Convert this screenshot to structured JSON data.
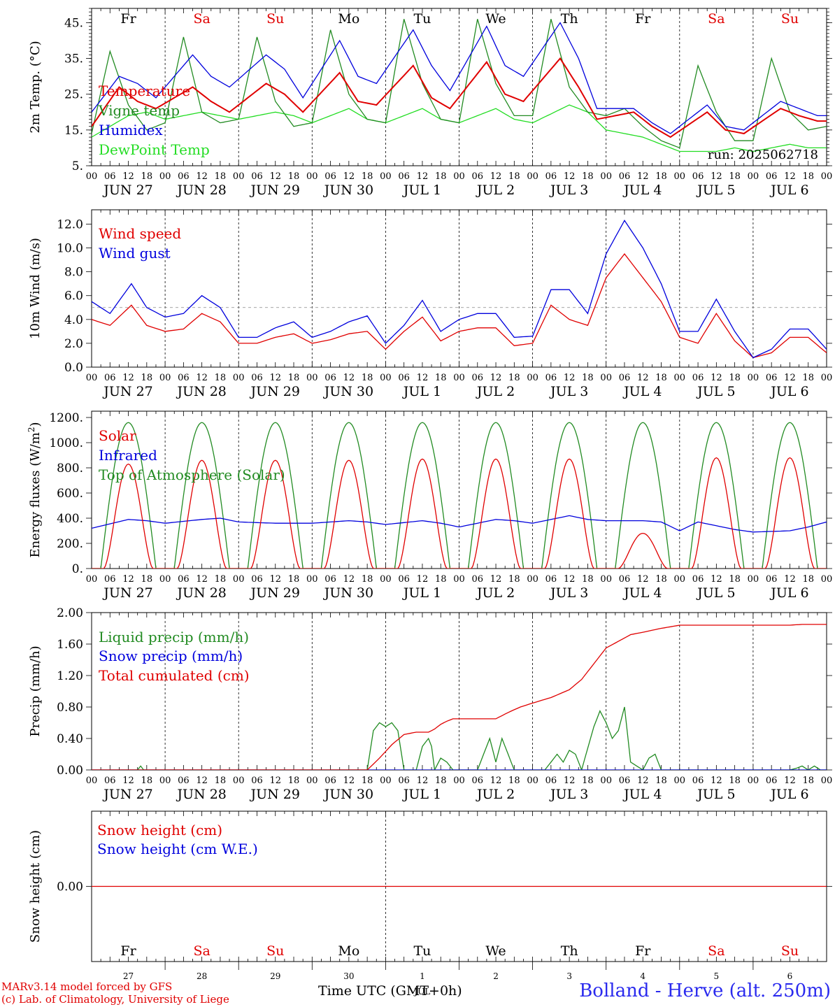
{
  "run_label": "run: 2025062718",
  "footer": {
    "model": "MARv3.14 model forced by GFS",
    "lab": "(c) Lab. of Climatology, University of Liege",
    "x_title": "Time UTC (GMT+0h)",
    "station": "Bolland - Herve (alt. 250m)",
    "month_under": "JUL"
  },
  "weekdays": [
    {
      "label": "Fr",
      "color": "#000000"
    },
    {
      "label": "Sa",
      "color": "#e00000"
    },
    {
      "label": "Su",
      "color": "#e00000"
    },
    {
      "label": "Mo",
      "color": "#000000"
    },
    {
      "label": "Tu",
      "color": "#000000"
    },
    {
      "label": "We",
      "color": "#000000"
    },
    {
      "label": "Th",
      "color": "#000000"
    },
    {
      "label": "Fr",
      "color": "#000000"
    },
    {
      "label": "Sa",
      "color": "#e00000"
    },
    {
      "label": "Su",
      "color": "#e00000"
    }
  ],
  "dates": [
    "JUN 27",
    "JUN 28",
    "JUN 29",
    "JUN 30",
    "JUL  1",
    "JUL  2",
    "JUL  3",
    "JUL  4",
    "JUL  5",
    "JUL  6"
  ],
  "day_numbers": [
    "27",
    "28",
    "29",
    "30",
    "1",
    "2",
    "3",
    "4",
    "5",
    "6"
  ],
  "hour_labels": [
    "00",
    "06",
    "12",
    "18"
  ],
  "last_hour_label": "00",
  "chart_data": [
    {
      "type": "line",
      "ylabel": "2m Temp. (°C)",
      "ylim": [
        5,
        49
      ],
      "yticks": [
        5,
        15,
        25,
        35,
        45
      ],
      "ytick_labels": [
        "5.",
        "15.",
        "25.",
        "35.",
        "45."
      ],
      "x_unit": "hours since JUN 27 00 UTC",
      "series": [
        {
          "name": "Temperature",
          "color": "#e00000",
          "x": [
            0,
            9,
            15,
            21,
            33,
            39,
            45,
            57,
            63,
            69,
            81,
            87,
            93,
            105,
            111,
            117,
            129,
            135,
            141,
            153,
            159,
            165,
            177,
            183,
            189,
            201,
            207,
            213,
            225,
            231,
            237
          ],
          "values": [
            16,
            27,
            23,
            21,
            27,
            23,
            20,
            28,
            25,
            20,
            31,
            23,
            22,
            33,
            24,
            21,
            34,
            25,
            23,
            35,
            27,
            18,
            20,
            16,
            13,
            20,
            15,
            14,
            21,
            19,
            17.5
          ]
        },
        {
          "name": "Vigne temp",
          "color": "#228b22",
          "x": [
            0,
            6,
            12,
            18,
            24,
            30,
            36,
            42,
            48,
            54,
            60,
            66,
            72,
            78,
            84,
            90,
            96,
            102,
            108,
            114,
            120,
            126,
            132,
            138,
            144,
            150,
            156,
            162,
            168,
            174,
            180,
            186,
            192,
            198,
            204,
            210,
            216,
            222,
            228,
            234,
            240
          ],
          "values": [
            14,
            37,
            22,
            15,
            17,
            41,
            20,
            17,
            18,
            41,
            23,
            16,
            17,
            43,
            25,
            18,
            17,
            46,
            28,
            18,
            17,
            46,
            28,
            19,
            19,
            46,
            27,
            20,
            19,
            21,
            16,
            12,
            10,
            33,
            20,
            12,
            12,
            35,
            20,
            15,
            16
          ]
        },
        {
          "name": "Humidex",
          "color": "#0000dd",
          "x": [
            0,
            9,
            15,
            21,
            33,
            39,
            45,
            57,
            63,
            69,
            81,
            87,
            93,
            105,
            111,
            117,
            129,
            135,
            141,
            153,
            159,
            165,
            177,
            183,
            189,
            201,
            207,
            213,
            225,
            231,
            237
          ],
          "values": [
            20,
            30,
            28,
            24,
            36,
            30,
            27,
            36,
            32,
            24,
            40,
            30,
            28,
            43,
            33,
            26,
            44,
            33,
            30,
            45,
            35,
            21,
            21,
            17,
            14,
            22,
            16,
            15,
            23,
            21,
            19
          ]
        },
        {
          "name": "DewPoint Temp",
          "color": "#22dd22",
          "x": [
            0,
            12,
            18,
            24,
            36,
            42,
            48,
            60,
            66,
            72,
            84,
            90,
            96,
            108,
            114,
            120,
            132,
            138,
            144,
            156,
            162,
            168,
            180,
            186,
            192,
            204,
            210,
            216,
            228,
            234,
            240
          ],
          "values": [
            13,
            19,
            20,
            18,
            20,
            19,
            18,
            20,
            19,
            17,
            21,
            18,
            17,
            21,
            18,
            17,
            21,
            18,
            17,
            22,
            20,
            15,
            13,
            11,
            9,
            9,
            10,
            9,
            11,
            10,
            10
          ]
        }
      ]
    },
    {
      "type": "line",
      "ylabel": "10m Wind (m/s)",
      "ylim": [
        0,
        13.2
      ],
      "yticks": [
        0,
        2,
        4,
        6,
        8,
        10,
        12
      ],
      "ytick_labels": [
        "0.0",
        "2.0",
        "4.0",
        "6.0",
        "8.0",
        "10.0",
        "12.0"
      ],
      "ref_line": 5,
      "x_unit": "hours since JUN 27 00 UTC",
      "series": [
        {
          "name": "Wind speed",
          "color": "#e00000",
          "x": [
            0,
            6,
            13,
            18,
            24,
            30,
            36,
            42,
            48,
            54,
            60,
            66,
            72,
            78,
            84,
            90,
            96,
            102,
            108,
            114,
            120,
            126,
            132,
            138,
            144,
            150,
            156,
            162,
            168,
            174,
            180,
            186,
            192,
            198,
            204,
            210,
            216,
            222,
            228,
            234,
            240
          ],
          "values": [
            4,
            3.5,
            5.2,
            3.5,
            3,
            3.2,
            4.5,
            3.8,
            2,
            2,
            2.5,
            2.8,
            2,
            2.3,
            2.8,
            3,
            1.5,
            3,
            4.2,
            2.2,
            3,
            3.3,
            3.3,
            1.8,
            2,
            5.2,
            4,
            3.5,
            7.5,
            9.5,
            7.5,
            5.5,
            2.5,
            2,
            4.5,
            2.2,
            0.8,
            1.2,
            2.5,
            2.5,
            1.2
          ]
        },
        {
          "name": "Wind gust",
          "color": "#0000dd",
          "x": [
            0,
            6,
            13,
            18,
            24,
            30,
            36,
            42,
            48,
            54,
            60,
            66,
            72,
            78,
            84,
            90,
            96,
            102,
            108,
            114,
            120,
            126,
            132,
            138,
            144,
            150,
            156,
            162,
            168,
            174,
            180,
            186,
            192,
            198,
            204,
            210,
            216,
            222,
            228,
            234,
            240
          ],
          "values": [
            5.5,
            4.5,
            7,
            5,
            4.2,
            4.5,
            6,
            5,
            2.5,
            2.5,
            3.3,
            3.8,
            2.5,
            3,
            3.8,
            4.3,
            2,
            3.5,
            5.6,
            3,
            4,
            4.5,
            4.5,
            2.5,
            2.6,
            6.5,
            6.5,
            4.5,
            9.5,
            12.3,
            10,
            7,
            3,
            3,
            5.7,
            3,
            0.8,
            1.5,
            3.2,
            3.2,
            1.5
          ]
        }
      ]
    },
    {
      "type": "line",
      "ylabel": "Energy fluxes (W/m2)",
      "ylim": [
        0,
        1250
      ],
      "yticks": [
        0,
        200,
        400,
        600,
        800,
        1000,
        1200
      ],
      "ytick_labels": [
        "0.",
        "200.",
        "400.",
        "600.",
        "800.",
        "1000.",
        "1200."
      ],
      "x_unit": "hours since JUN 27 00 UTC",
      "day_peaks": {
        "solar": [
          830,
          860,
          860,
          860,
          870,
          870,
          870,
          280,
          880,
          880
        ],
        "toa": 1160
      },
      "series": [
        {
          "name": "Solar",
          "color": "#e00000"
        },
        {
          "name": "Infrared",
          "color": "#0000dd",
          "x": [
            0,
            12,
            18,
            24,
            36,
            42,
            48,
            60,
            66,
            72,
            84,
            90,
            96,
            108,
            114,
            120,
            132,
            138,
            144,
            156,
            162,
            168,
            180,
            186,
            192,
            198,
            204,
            210,
            216,
            228,
            234,
            240
          ],
          "values": [
            320,
            390,
            380,
            360,
            390,
            400,
            370,
            360,
            360,
            360,
            380,
            370,
            350,
            380,
            360,
            330,
            390,
            380,
            360,
            420,
            390,
            380,
            380,
            370,
            300,
            370,
            340,
            310,
            290,
            300,
            330,
            370
          ]
        },
        {
          "name": "Top of Atmosphere (Solar)",
          "color": "#228b22"
        }
      ]
    },
    {
      "type": "line",
      "ylabel": "Precip (mm/h)",
      "ylim": [
        0,
        2.0
      ],
      "yticks": [
        0,
        0.4,
        0.8,
        1.2,
        1.6,
        2.0
      ],
      "ytick_labels": [
        "0.00",
        "0.40",
        "0.80",
        "1.20",
        "1.60",
        "2.00"
      ],
      "x_unit": "hours since JUN 27 00 UTC",
      "series": [
        {
          "name": "Liquid precip (mm/h)",
          "color": "#228b22",
          "x": [
            0,
            15,
            16,
            17,
            90,
            92,
            94,
            96,
            98,
            100,
            102,
            106,
            108,
            110,
            111,
            112,
            114,
            116,
            118,
            126,
            130,
            132,
            134,
            136,
            138,
            148,
            150,
            152,
            154,
            156,
            158,
            160,
            164,
            166,
            168,
            170,
            172,
            174,
            176,
            180,
            182,
            184,
            186,
            198,
            228,
            230,
            232,
            234,
            236,
            238,
            240
          ],
          "values": [
            0,
            0,
            0.05,
            0,
            0,
            0.5,
            0.6,
            0.55,
            0.6,
            0.5,
            0,
            0,
            0.3,
            0.4,
            0.3,
            0,
            0.15,
            0.1,
            0,
            0,
            0.4,
            0.1,
            0.4,
            0.2,
            0,
            0,
            0.1,
            0.2,
            0.1,
            0.25,
            0.2,
            0,
            0.55,
            0.75,
            0.6,
            0.4,
            0.5,
            0.8,
            0.1,
            0,
            0.15,
            0.2,
            0,
            0,
            0,
            0.02,
            0.05,
            0,
            0.05,
            0,
            0
          ]
        },
        {
          "name": "Snow precip (mm/h)",
          "color": "#0000dd",
          "x": [
            0,
            240
          ],
          "values": [
            0,
            0
          ]
        },
        {
          "name": "Total cumulated (cm)",
          "color": "#e00000",
          "x": [
            0,
            90,
            94,
            98,
            102,
            106,
            108,
            110,
            112,
            114,
            116,
            118,
            120,
            132,
            136,
            140,
            144,
            150,
            156,
            160,
            164,
            168,
            176,
            180,
            186,
            192,
            228,
            232,
            240
          ],
          "values": [
            0,
            0,
            0.15,
            0.32,
            0.45,
            0.48,
            0.48,
            0.48,
            0.52,
            0.58,
            0.62,
            0.65,
            0.65,
            0.65,
            0.73,
            0.8,
            0.85,
            0.92,
            1.02,
            1.15,
            1.35,
            1.55,
            1.72,
            1.75,
            1.8,
            1.84,
            1.84,
            1.85,
            1.85
          ]
        }
      ]
    },
    {
      "type": "line",
      "ylabel": "Snow height (cm)",
      "ylim": [
        -1,
        1
      ],
      "yticks": [
        0
      ],
      "ytick_labels": [
        "0.00"
      ],
      "x_unit": "hours since JUN 27 00 UTC",
      "series": [
        {
          "name": "Snow height (cm)",
          "color": "#e00000",
          "x": [
            0,
            240
          ],
          "values": [
            0,
            0
          ]
        },
        {
          "name": "Snow height (cm W.E.)",
          "color": "#0000dd"
        }
      ]
    }
  ]
}
